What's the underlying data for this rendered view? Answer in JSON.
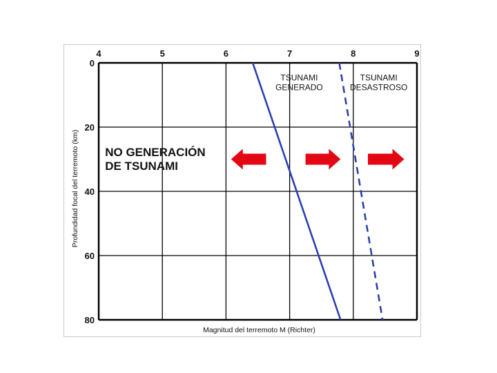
{
  "chart_data": {
    "type": "line",
    "xlabel": "Magnitud del terremoto M (Richter)",
    "ylabel": "Profundidad focal del terremoto (km)",
    "xlim": [
      4,
      9
    ],
    "ylim": [
      0,
      80
    ],
    "y_inverted": true,
    "x_axis_position": "top",
    "x_ticks": [
      "4",
      "5",
      "6",
      "7",
      "8",
      "9"
    ],
    "y_ticks": [
      "0",
      "20",
      "40",
      "60",
      "80"
    ],
    "grid": true,
    "series": [
      {
        "style": "solid",
        "color": "#2b3fae",
        "points": [
          [
            6.42,
            0
          ],
          [
            7.8,
            80
          ]
        ]
      },
      {
        "style": "dashed",
        "color": "#2b3fae",
        "points": [
          [
            7.78,
            0
          ],
          [
            8.46,
            80
          ]
        ]
      }
    ],
    "zone_labels": [
      {
        "lines": [
          "NO GENERACIÓN",
          "DE TSUNAMI"
        ],
        "x": 4.1,
        "y": 29
      },
      {
        "lines": [
          "TSUNAMI",
          "GENERADO"
        ],
        "x": 7.15,
        "y": 5.5
      },
      {
        "lines": [
          "TSUNAMI",
          "DESASTROSO"
        ],
        "x": 8.4,
        "y": 5.5
      }
    ],
    "arrows": [
      {
        "direction": "left",
        "x_from": 6.63,
        "x_to": 6.08,
        "y": 30
      },
      {
        "direction": "right",
        "x_from": 7.25,
        "x_to": 7.8,
        "y": 30
      },
      {
        "direction": "right",
        "x_from": 8.23,
        "x_to": 8.8,
        "y": 30
      }
    ],
    "arrow_color": "#e30613"
  }
}
